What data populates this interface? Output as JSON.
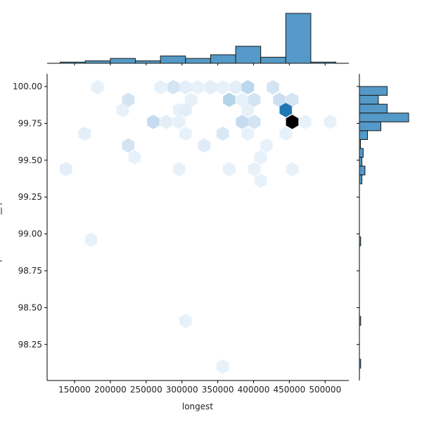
{
  "chart_data": {
    "type": "hexbin-joint",
    "title": "",
    "xlabel": "longest",
    "ylabel": "",
    "xlim": [
      112000,
      533000
    ],
    "ylim": [
      98.03,
      100.085
    ],
    "x_ticks": [
      150000,
      200000,
      250000,
      300000,
      350000,
      400000,
      450000,
      500000
    ],
    "x_tick_labels": [
      "150000",
      "200000",
      "250000",
      "300000",
      "350000",
      "400000",
      "450000",
      "500000"
    ],
    "y_ticks": [
      100.0,
      99.75,
      99.5,
      99.25,
      99.0,
      98.75,
      98.5,
      98.25
    ],
    "y_tick_labels": [
      "100.00",
      "99.75",
      "99.50",
      "99.25",
      "99.00",
      "98.75",
      "98.50",
      "98.25"
    ],
    "grid": false,
    "colormap": "Blues",
    "colors": {
      "bar_fill": "#5499c7",
      "bar_edge": "#1a1a1a",
      "hex_max": "#000000",
      "hex_high": "#1f77b4"
    },
    "hexbins": [
      {
        "x": 182000,
        "y": 99.995,
        "level": 0.08
      },
      {
        "x": 225000,
        "y": 99.91,
        "level": 0.18
      },
      {
        "x": 217000,
        "y": 99.84,
        "level": 0.08
      },
      {
        "x": 270000,
        "y": 99.995,
        "level": 0.08
      },
      {
        "x": 288000,
        "y": 99.995,
        "level": 0.18
      },
      {
        "x": 305000,
        "y": 99.995,
        "level": 0.1
      },
      {
        "x": 322000,
        "y": 99.995,
        "level": 0.08
      },
      {
        "x": 340000,
        "y": 99.995,
        "level": 0.1
      },
      {
        "x": 357000,
        "y": 99.995,
        "level": 0.08
      },
      {
        "x": 375000,
        "y": 99.995,
        "level": 0.1
      },
      {
        "x": 392000,
        "y": 99.995,
        "level": 0.28
      },
      {
        "x": 427000,
        "y": 99.995,
        "level": 0.18
      },
      {
        "x": 313000,
        "y": 99.91,
        "level": 0.08
      },
      {
        "x": 366000,
        "y": 99.91,
        "level": 0.3
      },
      {
        "x": 384000,
        "y": 99.91,
        "level": 0.08
      },
      {
        "x": 401000,
        "y": 99.91,
        "level": 0.18
      },
      {
        "x": 436000,
        "y": 99.91,
        "level": 0.22
      },
      {
        "x": 454000,
        "y": 99.91,
        "level": 0.18
      },
      {
        "x": 296000,
        "y": 99.84,
        "level": 0.08
      },
      {
        "x": 305000,
        "y": 99.84,
        "level": 0.1
      },
      {
        "x": 392000,
        "y": 99.84,
        "level": 0.08
      },
      {
        "x": 445000,
        "y": 99.84,
        "level": 0.75
      },
      {
        "x": 260000,
        "y": 99.76,
        "level": 0.25
      },
      {
        "x": 278000,
        "y": 99.76,
        "level": 0.1
      },
      {
        "x": 296000,
        "y": 99.76,
        "level": 0.08
      },
      {
        "x": 384000,
        "y": 99.76,
        "level": 0.25
      },
      {
        "x": 401000,
        "y": 99.76,
        "level": 0.18
      },
      {
        "x": 454000,
        "y": 99.76,
        "level": 1.0
      },
      {
        "x": 472000,
        "y": 99.76,
        "level": 0.08
      },
      {
        "x": 507000,
        "y": 99.76,
        "level": 0.08
      },
      {
        "x": 164000,
        "y": 99.68,
        "level": 0.1
      },
      {
        "x": 305000,
        "y": 99.68,
        "level": 0.08
      },
      {
        "x": 357000,
        "y": 99.68,
        "level": 0.15
      },
      {
        "x": 392000,
        "y": 99.68,
        "level": 0.08
      },
      {
        "x": 445000,
        "y": 99.68,
        "level": 0.08
      },
      {
        "x": 225000,
        "y": 99.6,
        "level": 0.18
      },
      {
        "x": 331000,
        "y": 99.6,
        "level": 0.12
      },
      {
        "x": 418000,
        "y": 99.6,
        "level": 0.08
      },
      {
        "x": 234000,
        "y": 99.52,
        "level": 0.08
      },
      {
        "x": 410000,
        "y": 99.52,
        "level": 0.08
      },
      {
        "x": 138000,
        "y": 99.44,
        "level": 0.1
      },
      {
        "x": 296000,
        "y": 99.44,
        "level": 0.08
      },
      {
        "x": 366000,
        "y": 99.44,
        "level": 0.08
      },
      {
        "x": 401000,
        "y": 99.44,
        "level": 0.08
      },
      {
        "x": 454000,
        "y": 99.44,
        "level": 0.08
      },
      {
        "x": 410000,
        "y": 99.36,
        "level": 0.08
      },
      {
        "x": 173000,
        "y": 98.96,
        "level": 0.08
      },
      {
        "x": 305000,
        "y": 98.41,
        "level": 0.08
      },
      {
        "x": 357000,
        "y": 98.1,
        "level": 0.08
      }
    ],
    "x_marginal_histogram": {
      "bin_edges": [
        130000,
        165000,
        200000,
        235000,
        270000,
        305000,
        340000,
        375000,
        410000,
        445000,
        480000,
        515000
      ],
      "counts": [
        1,
        2,
        4,
        2,
        6,
        4,
        7,
        14,
        5,
        41,
        1
      ]
    },
    "y_marginal_histogram": {
      "bins": [
        {
          "y_top": 100.0,
          "y_bottom": 99.94,
          "count": 11
        },
        {
          "y_top": 99.94,
          "y_bottom": 99.88,
          "count": 7.5
        },
        {
          "y_top": 99.88,
          "y_bottom": 99.82,
          "count": 11
        },
        {
          "y_top": 99.82,
          "y_bottom": 99.76,
          "count": 19.5
        },
        {
          "y_top": 99.76,
          "y_bottom": 99.7,
          "count": 8.5
        },
        {
          "y_top": 99.7,
          "y_bottom": 99.64,
          "count": 3.2
        },
        {
          "y_top": 99.64,
          "y_bottom": 99.58,
          "count": 0.4
        },
        {
          "y_top": 99.58,
          "y_bottom": 99.52,
          "count": 1.5
        },
        {
          "y_top": 99.52,
          "y_bottom": 99.46,
          "count": 1
        },
        {
          "y_top": 99.46,
          "y_bottom": 99.4,
          "count": 2.2
        },
        {
          "y_top": 99.4,
          "y_bottom": 99.34,
          "count": 1
        },
        {
          "y_top": 98.98,
          "y_bottom": 98.92,
          "count": 0.5
        },
        {
          "y_top": 98.44,
          "y_bottom": 98.38,
          "count": 0.5
        },
        {
          "y_top": 98.15,
          "y_bottom": 98.09,
          "count": 0.5
        }
      ]
    }
  }
}
